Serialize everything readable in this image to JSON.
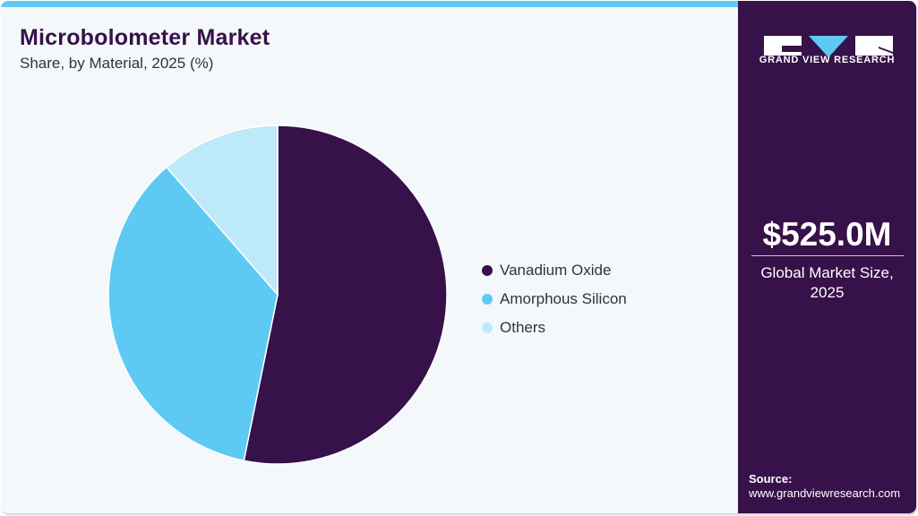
{
  "header": {
    "title": "Microbolometer Market",
    "subtitle": "Share, by Material, 2025 (%)"
  },
  "legend": [
    {
      "label": "Vanadium Oxide",
      "color": "#371149"
    },
    {
      "label": "Amorphous Silicon",
      "color": "#5ecaf4"
    },
    {
      "label": "Others",
      "color": "#bde9f9"
    }
  ],
  "sidebar": {
    "brand": "GRAND VIEW RESEARCH",
    "market_size": "$525.0M",
    "market_size_label": "Global Market Size, 2025",
    "source_label": "Source:",
    "source_url": "www.grandviewresearch.com"
  },
  "colors": {
    "brand_dark": "#371149",
    "accent": "#5ecaf4",
    "light": "#bde9f9",
    "background": "#f4f8fb"
  },
  "chart_data": {
    "type": "pie",
    "title": "Microbolometer Market",
    "subtitle": "Share, by Material, 2025 (%)",
    "categories": [
      "Vanadium Oxide",
      "Amorphous Silicon",
      "Others"
    ],
    "values": [
      53.2,
      35.4,
      11.4
    ],
    "colors": [
      "#371149",
      "#5ecaf4",
      "#bde9f9"
    ],
    "legend_position": "right",
    "start_angle": "12 o'clock, clockwise"
  }
}
